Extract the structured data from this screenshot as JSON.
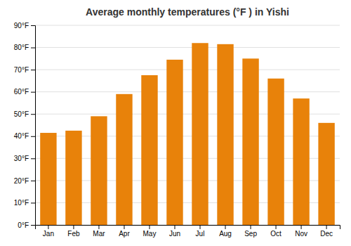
{
  "chart_data": {
    "type": "bar",
    "title": "Average monthly temperatures (°F ) in Yishi",
    "categories": [
      "Jan",
      "Feb",
      "Mar",
      "Apr",
      "May",
      "Jun",
      "Jul",
      "Aug",
      "Sep",
      "Oct",
      "Nov",
      "Dec"
    ],
    "values": [
      41.5,
      42.5,
      49.0,
      59.0,
      67.5,
      74.5,
      82.0,
      81.5,
      75.0,
      66.0,
      57.0,
      46.0
    ],
    "color": "#E8820A",
    "ylim": [
      0,
      90
    ],
    "yticks": [
      {
        "value": 0,
        "label": "0°F"
      },
      {
        "value": 10,
        "label": "10°F"
      },
      {
        "value": 20,
        "label": "20°F"
      },
      {
        "value": 30,
        "label": "30°F"
      },
      {
        "value": 40,
        "label": "40°F"
      },
      {
        "value": 50,
        "label": "50°F"
      },
      {
        "value": 60,
        "label": "60°F"
      },
      {
        "value": 70,
        "label": "70°F"
      },
      {
        "value": 80,
        "label": "80°F"
      },
      {
        "value": 90,
        "label": "90°F"
      }
    ],
    "grid": true
  }
}
